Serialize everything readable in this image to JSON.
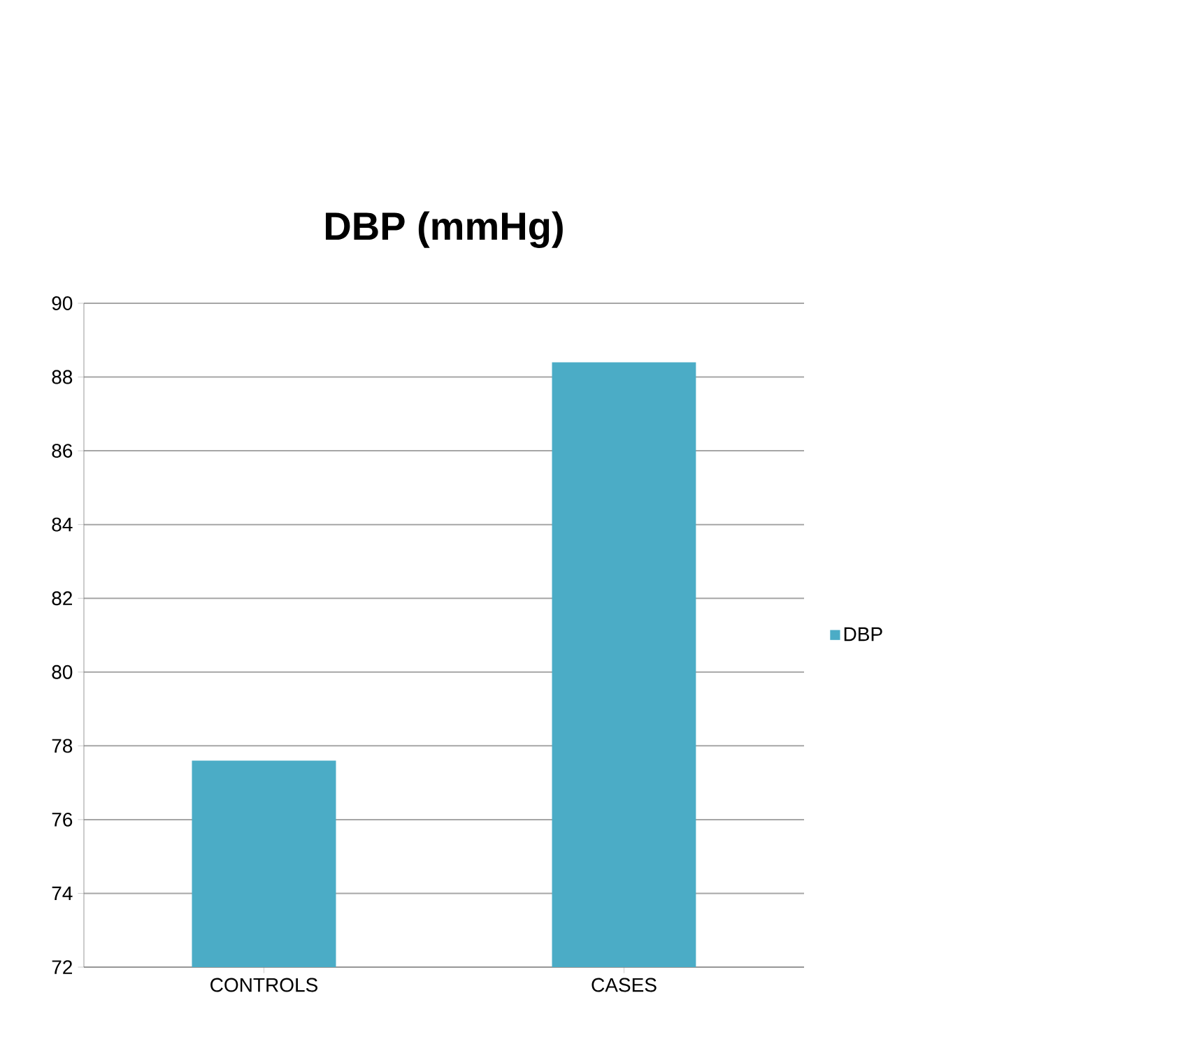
{
  "chart_data": {
    "type": "bar",
    "title": "DBP (mmHg)",
    "categories": [
      "CONTROLS",
      "CASES"
    ],
    "series": [
      {
        "name": "DBP",
        "color": "#4bacc6",
        "values": [
          77.6,
          88.4
        ]
      }
    ],
    "ylim": [
      72,
      90
    ],
    "yticks": [
      72,
      74,
      76,
      78,
      80,
      82,
      84,
      86,
      88,
      90
    ],
    "grid": "y",
    "legend": "right"
  }
}
